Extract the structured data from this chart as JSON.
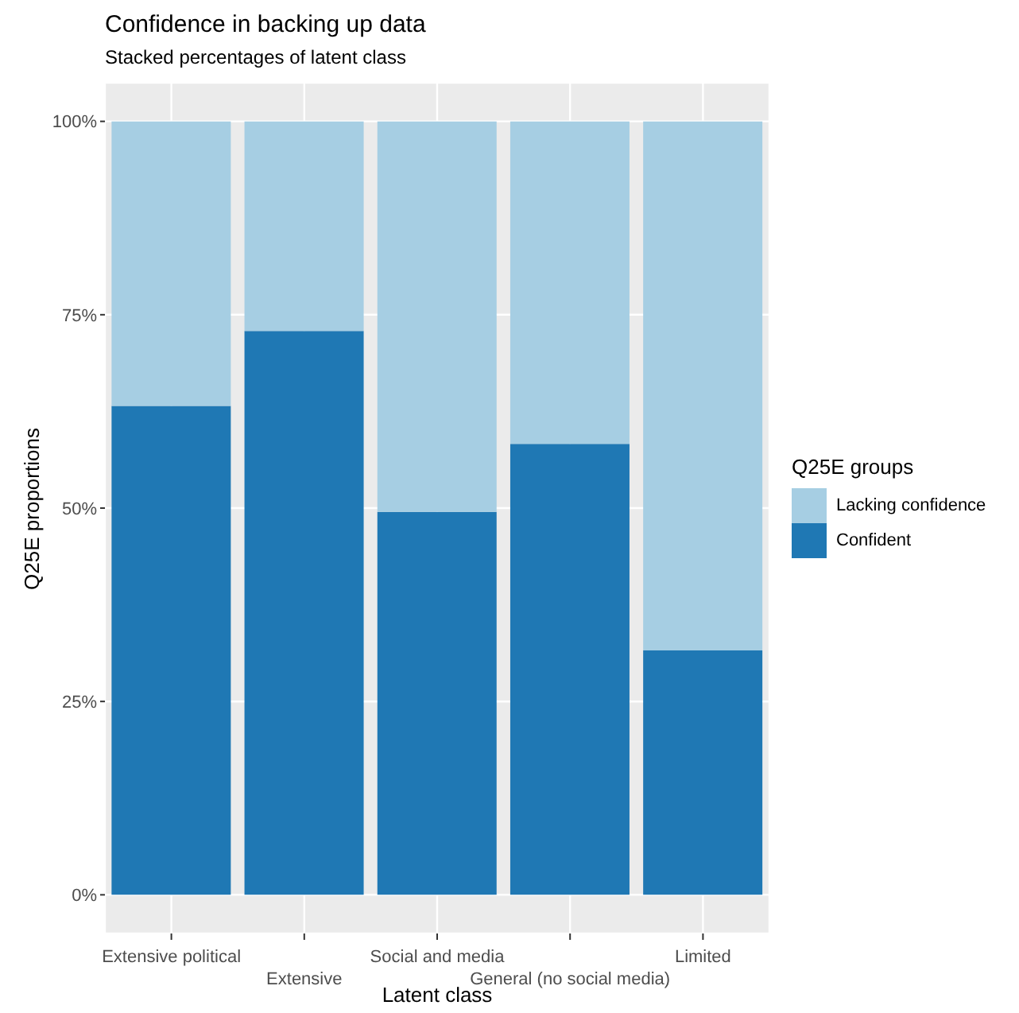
{
  "chart_data": {
    "type": "bar",
    "title": "Confidence in backing up data",
    "subtitle": "Stacked percentages of latent class",
    "xlabel": "Latent class",
    "ylabel": "Q25E proportions",
    "legend_title": "Q25E groups",
    "categories": [
      "Extensive political",
      "Extensive",
      "Social and media",
      "General (no social media)",
      "Limited"
    ],
    "series": [
      {
        "name": "Confident",
        "color": "#1f78b4",
        "values": [
          63.2,
          72.9,
          49.5,
          58.3,
          31.6
        ]
      },
      {
        "name": "Lacking confidence",
        "color": "#a6cee3",
        "values": [
          36.8,
          27.1,
          50.5,
          41.7,
          68.4
        ]
      }
    ],
    "stacked": true,
    "ylim": [
      -5,
      105
    ],
    "yticks": [
      {
        "value": 0,
        "label": "0%"
      },
      {
        "value": 25,
        "label": "25%"
      },
      {
        "value": 50,
        "label": "50%"
      },
      {
        "value": 75,
        "label": "75%"
      },
      {
        "value": 100,
        "label": "100%"
      }
    ],
    "grid": true,
    "legend": "right"
  }
}
